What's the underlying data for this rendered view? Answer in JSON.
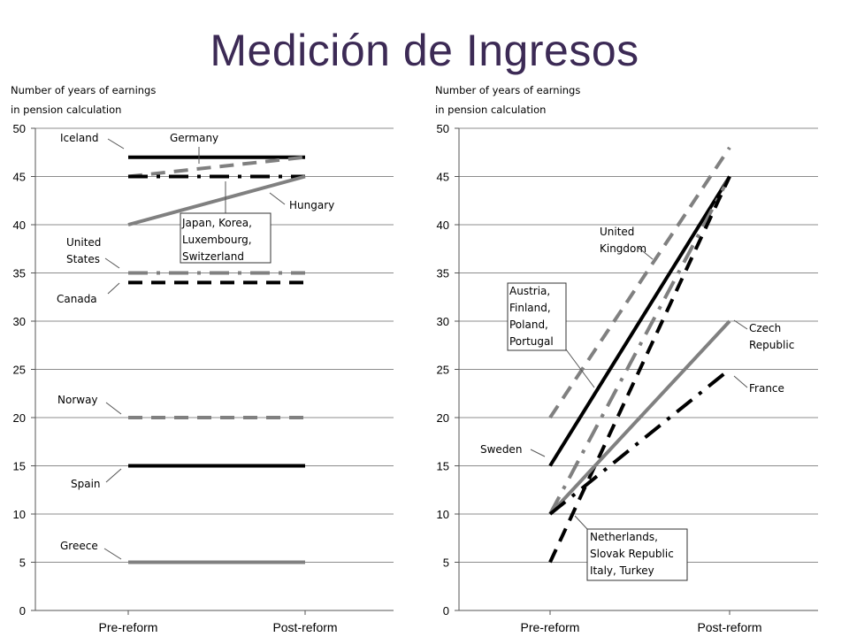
{
  "slide": {
    "title": "Medición de Ingresos"
  },
  "chart_data": [
    {
      "type": "line",
      "ylabel_lines": [
        "Number of years of earnings",
        "in pension calculation"
      ],
      "categories": [
        "Pre-reform",
        "Post-reform"
      ],
      "ylim": [
        0,
        50
      ],
      "yticks": [
        0,
        5,
        10,
        15,
        20,
        25,
        30,
        35,
        40,
        45,
        50
      ],
      "grid": true,
      "series": [
        {
          "values": [
            47,
            47
          ],
          "color": "#000000",
          "style": "solid"
        },
        {
          "values": [
            45,
            47
          ],
          "color": "#808080",
          "style": "dash"
        },
        {
          "values": [
            45,
            45
          ],
          "color": "#000000",
          "style": "dashdot"
        },
        {
          "values": [
            40,
            45
          ],
          "color": "#808080",
          "style": "solid"
        },
        {
          "values": [
            35,
            35
          ],
          "color": "#808080",
          "style": "dashdot"
        },
        {
          "values": [
            34,
            34
          ],
          "color": "#000000",
          "style": "dash"
        },
        {
          "values": [
            20,
            20
          ],
          "color": "#808080",
          "style": "dash"
        },
        {
          "values": [
            15,
            15
          ],
          "color": "#000000",
          "style": "solid"
        },
        {
          "values": [
            5,
            5
          ],
          "color": "#808080",
          "style": "solid"
        }
      ],
      "annotations": [
        {
          "lines": [
            "Iceland"
          ]
        },
        {
          "lines": [
            "Germany"
          ]
        },
        {
          "lines": [
            "Hungary"
          ]
        },
        {
          "lines": [
            "Japan, Korea,",
            "Luxembourg,",
            "Switzerland"
          ],
          "boxed": true
        },
        {
          "lines": [
            "United",
            "States"
          ]
        },
        {
          "lines": [
            "Canada"
          ]
        },
        {
          "lines": [
            "Norway"
          ]
        },
        {
          "lines": [
            "Spain"
          ]
        },
        {
          "lines": [
            "Greece"
          ]
        }
      ]
    },
    {
      "type": "line",
      "ylabel_lines": [
        "Number of years of earnings",
        "in pension calculation"
      ],
      "categories": [
        "Pre-reform",
        "Post-reform"
      ],
      "ylim": [
        0,
        50
      ],
      "yticks": [
        0,
        5,
        10,
        15,
        20,
        25,
        30,
        35,
        40,
        45,
        50
      ],
      "grid": true,
      "series": [
        {
          "values": [
            20,
            48
          ],
          "color": "#808080",
          "style": "dash"
        },
        {
          "values": [
            15,
            45
          ],
          "color": "#000000",
          "style": "solid"
        },
        {
          "values": [
            10,
            45
          ],
          "color": "#808080",
          "style": "dashdot"
        },
        {
          "values": [
            5,
            45
          ],
          "color": "#000000",
          "style": "dash"
        },
        {
          "values": [
            10,
            30
          ],
          "color": "#808080",
          "style": "solid"
        },
        {
          "values": [
            10,
            25
          ],
          "color": "#000000",
          "style": "dashdot"
        }
      ],
      "annotations": [
        {
          "lines": [
            "United",
            "Kingdom"
          ]
        },
        {
          "lines": [
            "Austria,",
            "Finland,",
            "Poland,",
            "Portugal"
          ],
          "boxed": true
        },
        {
          "lines": [
            "Czech",
            "Republic"
          ]
        },
        {
          "lines": [
            "France"
          ]
        },
        {
          "lines": [
            "Sweden"
          ]
        },
        {
          "lines": [
            "Netherlands,",
            "Slovak Republic",
            "Italy, Turkey"
          ],
          "boxed": true
        }
      ]
    }
  ]
}
